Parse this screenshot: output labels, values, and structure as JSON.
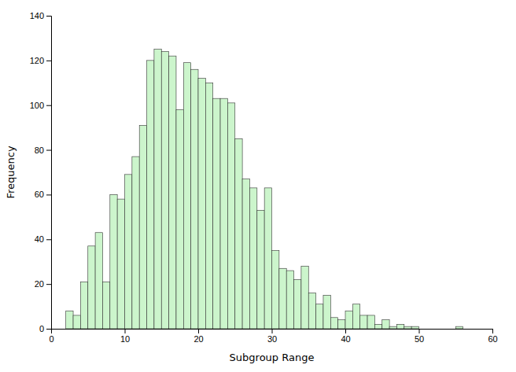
{
  "chart_data": {
    "type": "histogram",
    "xlabel": "Subgroup Range",
    "ylabel": "Frequency",
    "bins": [
      2,
      3,
      4,
      5,
      6,
      7,
      8,
      9,
      10,
      11,
      12,
      13,
      14,
      15,
      16,
      17,
      18,
      19,
      20,
      21,
      22,
      23,
      24,
      25,
      26,
      27,
      28,
      29,
      30,
      31,
      32,
      33,
      34,
      35,
      36,
      37,
      38,
      39,
      40,
      41,
      42,
      43,
      44,
      45,
      46,
      47,
      48,
      49,
      50,
      51,
      52,
      53,
      54,
      55,
      56
    ],
    "values": [
      8,
      6,
      21,
      37,
      43,
      21,
      60,
      58,
      69,
      77,
      91,
      120,
      125,
      124,
      122,
      98,
      119,
      116,
      112,
      110,
      103,
      103,
      101,
      85,
      67,
      63,
      53,
      63,
      35,
      27,
      26,
      22,
      28,
      16,
      11,
      15,
      5,
      4,
      8,
      11,
      6,
      6,
      2,
      4,
      1,
      2,
      1,
      1,
      0,
      0,
      0,
      0,
      0,
      1
    ],
    "color": "#ccf5cc",
    "xlim": [
      0,
      60
    ],
    "ylim": [
      0,
      140
    ],
    "xticks": [
      0,
      10,
      20,
      30,
      40,
      50,
      60
    ],
    "yticks": [
      0,
      20,
      40,
      60,
      80,
      100,
      120,
      140
    ]
  }
}
